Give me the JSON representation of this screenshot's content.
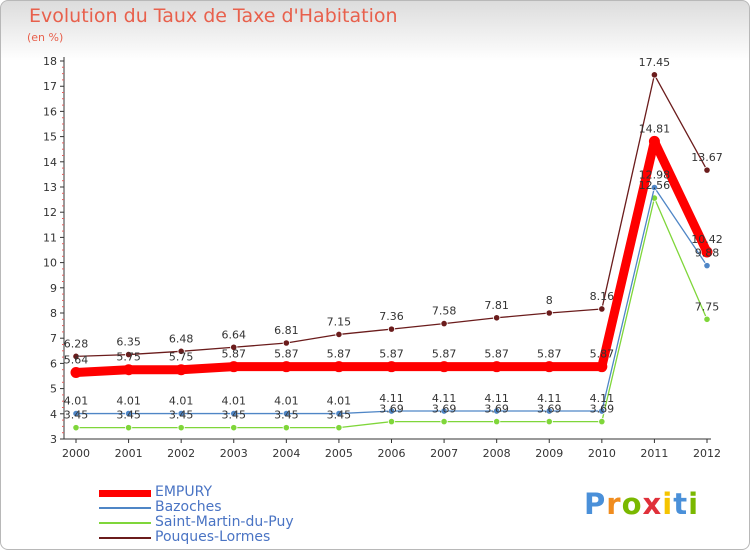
{
  "chart_data": {
    "type": "line",
    "title": "Evolution du Taux de Taxe d'Habitation",
    "subtitle": "(en %)",
    "categories": [
      "2000",
      "2001",
      "2002",
      "2003",
      "2004",
      "2005",
      "2006",
      "2007",
      "2008",
      "2009",
      "2010",
      "2011",
      "2012"
    ],
    "ylim": [
      3,
      18
    ],
    "yticks": [
      3,
      4,
      5,
      6,
      7,
      8,
      9,
      10,
      11,
      12,
      13,
      14,
      15,
      16,
      17,
      18
    ],
    "grid": false,
    "legend_position": "bottom-left",
    "series": [
      {
        "name": "EMPURY",
        "color": "#ff0000",
        "values": [
          5.64,
          5.75,
          5.75,
          5.87,
          5.87,
          5.87,
          5.87,
          5.87,
          5.87,
          5.87,
          5.87,
          14.81,
          10.42
        ],
        "labels": [
          "5.64",
          "5.75",
          "5.75",
          "5.87",
          "5.87",
          "5.87",
          "5.87",
          "5.87",
          "5.87",
          "5.87",
          "5.87",
          "14.81",
          "10.42"
        ]
      },
      {
        "name": "Bazoches",
        "color": "#4f86c6",
        "values": [
          4.01,
          4.01,
          4.01,
          4.01,
          4.01,
          4.01,
          4.11,
          4.11,
          4.11,
          4.11,
          4.11,
          12.98,
          9.88
        ],
        "labels": [
          "4.01",
          "4.01",
          "4.01",
          "4.01",
          "4.01",
          "4.01",
          "4.11",
          "4.11",
          "4.11",
          "4.11",
          "4.11",
          "12.98",
          "9.88"
        ]
      },
      {
        "name": "Saint-Martin-du-Puy",
        "color": "#7fd63a",
        "values": [
          3.45,
          3.45,
          3.45,
          3.45,
          3.45,
          3.45,
          3.69,
          3.69,
          3.69,
          3.69,
          3.69,
          12.56,
          7.75
        ],
        "labels": [
          "3.45",
          "3.45",
          "3.45",
          "3.45",
          "3.45",
          "3.45",
          "3.69",
          "3.69",
          "3.69",
          "3.69",
          "3.69",
          "12.56",
          "7.75"
        ]
      },
      {
        "name": "Pouques-Lormes",
        "color": "#6b1c1c",
        "values": [
          6.28,
          6.35,
          6.48,
          6.64,
          6.81,
          7.15,
          7.36,
          7.58,
          7.81,
          8,
          8.16,
          17.45,
          13.67
        ],
        "labels": [
          "6.28",
          "6.35",
          "6.48",
          "6.64",
          "6.81",
          "7.15",
          "7.36",
          "7.58",
          "7.81",
          "8",
          "8.16",
          "17.45",
          "13.67"
        ]
      }
    ]
  },
  "brand": {
    "letters": [
      "P",
      "r",
      "o",
      "x",
      "i",
      "t",
      "i"
    ],
    "colors": [
      "#4a90d9",
      "#f08c1e",
      "#7ab800",
      "#e0303a",
      "#f5c400",
      "#4a90d9",
      "#7ab800"
    ]
  }
}
